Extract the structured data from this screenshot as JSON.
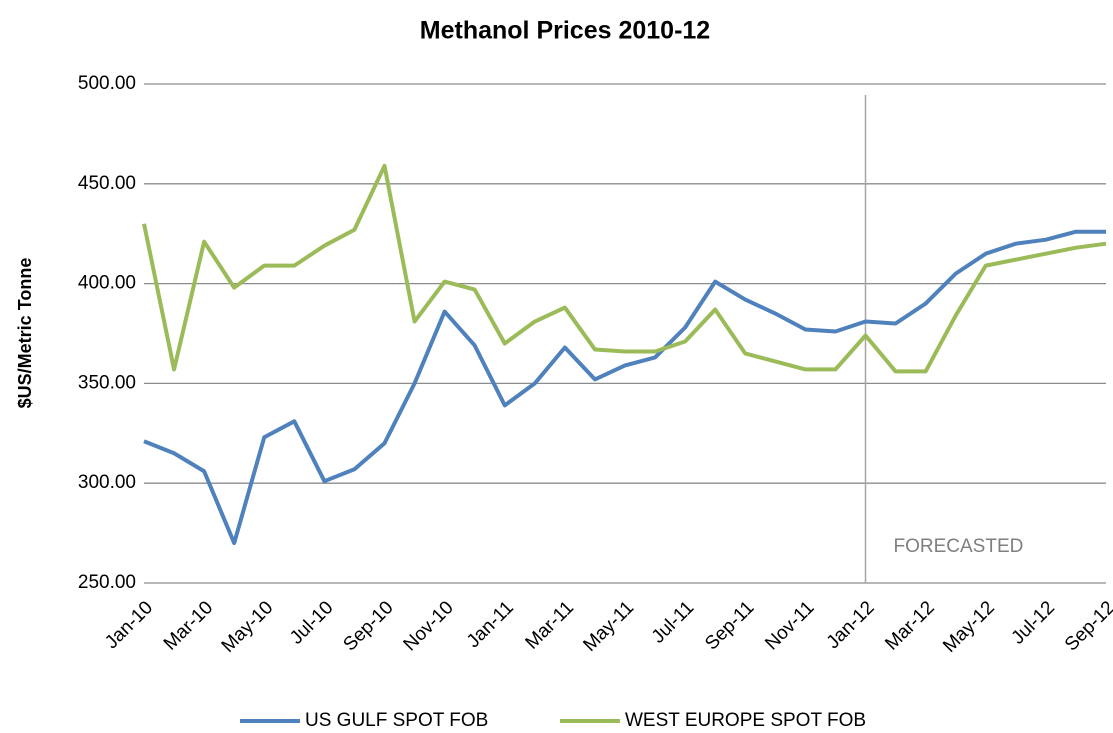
{
  "chart_data": {
    "type": "line",
    "title": "Methanol Prices 2010-12",
    "y_label": "$US/Metric Tonne",
    "categories": [
      "Jan-10",
      null,
      "Mar-10",
      null,
      "May-10",
      null,
      "Jul-10",
      null,
      "Sep-10",
      null,
      "Nov-10",
      null,
      "Jan-11",
      null,
      "Mar-11",
      null,
      "May-11",
      null,
      "Jul-11",
      null,
      "Sep-11",
      null,
      "Nov-11",
      null,
      "Jan-12",
      null,
      "Mar-12",
      null,
      "May-12",
      null,
      "Jul-12",
      null,
      "Sep-12"
    ],
    "series": [
      {
        "name": "US GULF SPOT FOB",
        "color": "#4f81bd",
        "values": [
          321,
          315,
          306,
          270,
          323,
          331,
          301,
          307,
          320,
          350,
          386,
          369,
          339,
          350,
          368,
          352,
          359,
          363,
          378,
          401,
          392,
          385,
          377,
          376,
          381,
          380,
          390,
          405,
          415,
          420,
          422,
          426,
          426
        ]
      },
      {
        "name": "WEST EUROPE SPOT FOB",
        "color": "#9bbb59",
        "values": [
          430,
          357,
          421,
          398,
          409,
          409,
          419,
          427,
          459,
          381,
          401,
          397,
          370,
          381,
          388,
          367,
          366,
          366,
          371,
          387,
          365,
          361,
          357,
          357,
          374,
          356,
          356,
          384,
          409,
          412,
          415,
          418,
          420
        ]
      }
    ],
    "ylim": [
      250,
      500
    ],
    "yticks": [
      {
        "value": 250,
        "label": "250.00"
      },
      {
        "value": 300,
        "label": "300.00"
      },
      {
        "value": 350,
        "label": "350.00"
      },
      {
        "value": 400,
        "label": "400.00"
      },
      {
        "value": 450,
        "label": "450.00"
      },
      {
        "value": 500,
        "label": "500.00"
      }
    ],
    "grid": true,
    "annotations": [
      {
        "text": "FORECASTED",
        "at": "Jan-12"
      }
    ],
    "legend": "bottom"
  }
}
